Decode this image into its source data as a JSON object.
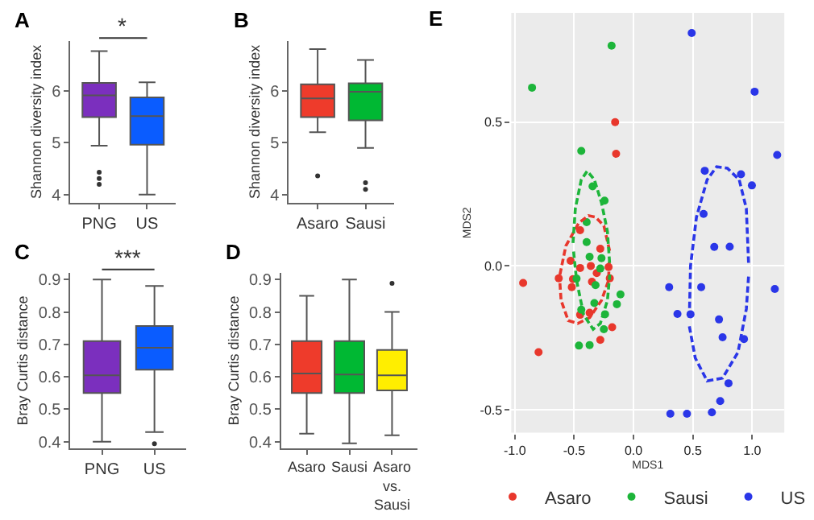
{
  "chart_data": [
    {
      "type": "box",
      "title": "A",
      "ylabel": "Shannon diversity index",
      "categories": [
        "PNG",
        "US"
      ],
      "colors": [
        "#7b2fbe",
        "#0a5cff"
      ],
      "boxes": [
        {
          "low": 4.94,
          "q1": 5.49,
          "median": 5.91,
          "q3": 6.15,
          "high": 6.76,
          "outliers": [
            4.43,
            4.31,
            4.2
          ]
        },
        {
          "low": 4.0,
          "q1": 4.96,
          "median": 5.51,
          "q3": 5.87,
          "high": 6.16
        }
      ],
      "ylim": [
        3.85,
        6.95
      ],
      "yticks": [
        4,
        5,
        6
      ],
      "annotations": [
        "*"
      ]
    },
    {
      "type": "box",
      "title": "B",
      "ylabel": "Shannon diversity index",
      "categories": [
        "Asaro",
        "Sausi"
      ],
      "colors": [
        "#ee3b2b",
        "#00b833"
      ],
      "boxes": [
        {
          "low": 5.2,
          "q1": 5.49,
          "median": 5.85,
          "q3": 6.12,
          "high": 6.8,
          "outliers": [
            4.36
          ]
        },
        {
          "low": 4.9,
          "q1": 5.43,
          "median": 5.98,
          "q3": 6.14,
          "high": 6.59,
          "outliers": [
            4.23,
            4.1
          ]
        }
      ],
      "ylim": [
        3.85,
        6.95
      ],
      "yticks": [
        4,
        5,
        6
      ]
    },
    {
      "type": "box",
      "title": "C",
      "ylabel": "Bray Curtis distance",
      "categories": [
        "PNG",
        "US"
      ],
      "colors": [
        "#7b2fbe",
        "#0a5cff"
      ],
      "boxes": [
        {
          "low": 0.4,
          "q1": 0.55,
          "median": 0.605,
          "q3": 0.71,
          "high": 0.9
        },
        {
          "low": 0.43,
          "q1": 0.622,
          "median": 0.69,
          "q3": 0.757,
          "high": 0.88,
          "outliers": [
            0.394
          ]
        }
      ],
      "ylim": [
        0.38,
        0.92
      ],
      "yticks": [
        0.4,
        0.5,
        0.6,
        0.7,
        0.8,
        0.9
      ],
      "annotations": [
        "***"
      ]
    },
    {
      "type": "box",
      "title": "D",
      "ylabel": "Bray Curtis distance",
      "categories": [
        "Asaro",
        "Sausi",
        "Asaro\nvs.\nSausi"
      ],
      "colors": [
        "#ee3b2b",
        "#00b833",
        "#ffee00"
      ],
      "boxes": [
        {
          "low": 0.425,
          "q1": 0.55,
          "median": 0.61,
          "q3": 0.71,
          "high": 0.85
        },
        {
          "low": 0.395,
          "q1": 0.55,
          "median": 0.607,
          "q3": 0.71,
          "high": 0.9
        },
        {
          "low": 0.42,
          "q1": 0.558,
          "median": 0.605,
          "q3": 0.683,
          "high": 0.8,
          "outliers": [
            0.888
          ]
        }
      ],
      "ylim": [
        0.38,
        0.92
      ],
      "yticks": [
        0.4,
        0.5,
        0.6,
        0.7,
        0.8,
        0.9
      ]
    },
    {
      "type": "scatter",
      "title": "E",
      "xlabel": "MDS1",
      "ylabel": "MDS2",
      "grid": true,
      "legend": "bottom",
      "xlim": [
        -1.03,
        1.27
      ],
      "xticks": [
        {
          "value": -1,
          "label": "-1.0"
        },
        -0.5,
        {
          "value": 0,
          "label": "0.0"
        },
        0.5,
        {
          "value": 1,
          "label": "1.0"
        }
      ],
      "ylim": [
        -0.58,
        0.88
      ],
      "yticks": [
        -0.5,
        {
          "value": 0,
          "label": "0.0"
        },
        0.5
      ],
      "series": [
        {
          "name": "Asaro",
          "color": "#e8372c",
          "marker": "circle",
          "x": [
            -0.155,
            -0.147,
            -0.45,
            -0.93,
            -0.8,
            -0.28,
            -0.53,
            -0.36,
            -0.45,
            -0.21,
            -0.63,
            -0.51,
            -0.31,
            -0.2,
            -0.35,
            -0.52,
            -0.37,
            -0.45,
            -0.18,
            -0.28
          ],
          "values": [
            0.5,
            0.39,
            0.124,
            -0.059,
            -0.3,
            0.06,
            0.018,
            0,
            -0.007,
            -0.004,
            -0.043,
            -0.046,
            -0.025,
            -0.043,
            -0.055,
            -0.074,
            -0.163,
            -0.17,
            -0.213,
            -0.257
          ]
        },
        {
          "name": "Sausi",
          "color": "#1db53a",
          "marker": "circle",
          "x": [
            -0.855,
            -0.185,
            -0.44,
            -0.345,
            -0.244,
            -0.395,
            -0.395,
            -0.37,
            -0.27,
            -0.28,
            -0.48,
            -0.32,
            -0.11,
            -0.14,
            -0.33,
            -0.44,
            -0.24,
            -0.25,
            -0.46,
            -0.37
          ],
          "values": [
            0.62,
            0.766,
            0.4,
            0.277,
            0.227,
            0.152,
            0.083,
            0.032,
            0.027,
            -0.009,
            -0.044,
            -0.067,
            -0.099,
            -0.133,
            -0.129,
            -0.152,
            -0.168,
            -0.22,
            -0.277,
            -0.275
          ]
        },
        {
          "name": "US",
          "color": "#2a36e8",
          "marker": "circle",
          "x": [
            0.49,
            1.02,
            1.21,
            0.6,
            0.905,
            0.997,
            0.59,
            0.3,
            0.57,
            0.68,
            0.81,
            0.37,
            0.48,
            0.72,
            0.75,
            0.93,
            1.19,
            0.8,
            0.73,
            0.31,
            0.45,
            0.66
          ],
          "values": [
            0.81,
            0.606,
            0.386,
            0.331,
            0.319,
            0.28,
            0.181,
            -0.074,
            -0.074,
            0.066,
            0.067,
            -0.167,
            -0.168,
            -0.186,
            -0.248,
            -0.254,
            -0.08,
            -0.408,
            -0.47,
            -0.514,
            -0.514,
            -0.509
          ]
        },
        {
          "type": "line",
          "line_style": "dashed",
          "color": "#e8372c",
          "x": [
            -0.62,
            -0.57,
            -0.46,
            -0.38,
            -0.32,
            -0.25,
            -0.2
          ],
          "values": [
            -0.03,
            0.07,
            0.15,
            0.175,
            0.17,
            0.14,
            0.05
          ]
        },
        {
          "type": "line",
          "line_style": "dashed",
          "color": "#e8372c",
          "x": [
            -0.62,
            -0.61,
            -0.55,
            -0.47,
            -0.37,
            -0.27,
            -0.21,
            -0.205
          ],
          "values": [
            -0.06,
            -0.12,
            -0.19,
            -0.2,
            -0.18,
            -0.12,
            -0.05,
            0.02
          ]
        },
        {
          "type": "line",
          "line_style": "dashed",
          "color": "#1db53a",
          "x": [
            -0.51,
            -0.49,
            -0.44,
            -0.39,
            -0.33,
            -0.27,
            -0.22,
            -0.2
          ],
          "values": [
            0.08,
            0.2,
            0.3,
            0.33,
            0.3,
            0.22,
            0.12,
            0
          ]
        },
        {
          "type": "line",
          "line_style": "dashed",
          "color": "#1db53a",
          "x": [
            -0.505,
            -0.48,
            -0.42,
            -0.34,
            -0.28,
            -0.22,
            -0.2
          ],
          "values": [
            0.05,
            -0.05,
            -0.17,
            -0.22,
            -0.2,
            -0.12,
            -0.03
          ]
        },
        {
          "type": "line",
          "line_style": "dashed",
          "color": "#2a36e8",
          "x": [
            0.47,
            0.48,
            0.53,
            0.62,
            0.7,
            0.79,
            0.89,
            0.95,
            0.97
          ],
          "values": [
            -0.18,
            0,
            0.17,
            0.3,
            0.345,
            0.34,
            0.3,
            0.2,
            0
          ]
        },
        {
          "type": "line",
          "line_style": "dashed",
          "color": "#2a36e8",
          "x": [
            0.47,
            0.52,
            0.62,
            0.75,
            0.88,
            0.95,
            0.97
          ],
          "values": [
            -0.21,
            -0.32,
            -0.4,
            -0.39,
            -0.3,
            -0.15,
            -0.03
          ]
        }
      ]
    }
  ]
}
